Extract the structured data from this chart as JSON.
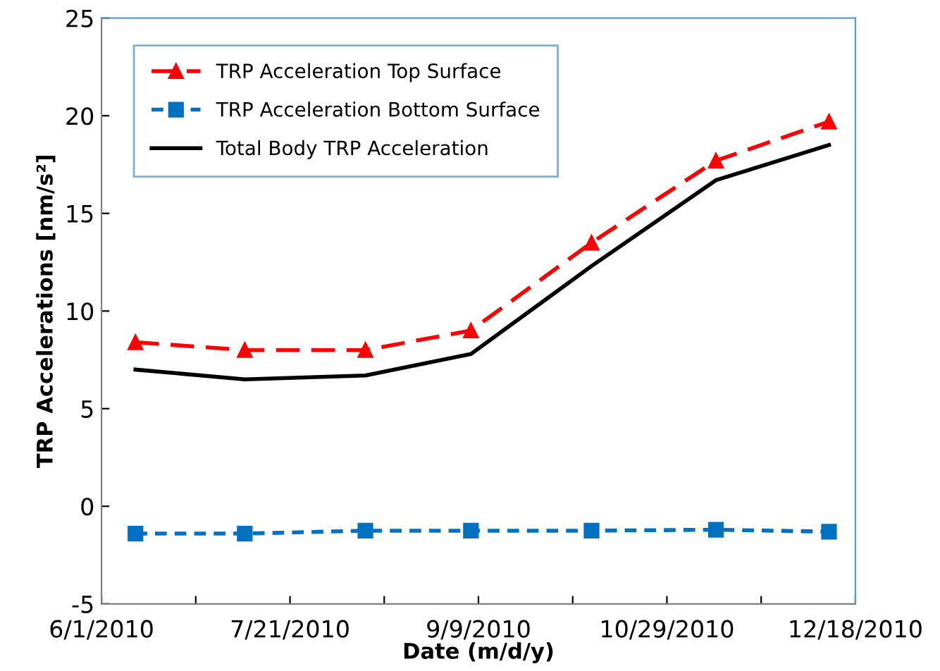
{
  "chart_data": {
    "type": "line",
    "xlabel": "Date (m/d/y)",
    "ylabel": "TRP Accelerations [nm/s²]",
    "x": [
      "2010-06-10",
      "2010-07-09",
      "2010-08-10",
      "2010-09-07",
      "2010-10-09",
      "2010-11-11",
      "2010-12-11"
    ],
    "series": [
      {
        "name": "TRP Acceleration Top Surface",
        "color": "#ff0000",
        "values": [
          8.4,
          8.0,
          8.0,
          9.0,
          13.5,
          17.7,
          19.7
        ],
        "marker": "triangle",
        "line_style": "dashed"
      },
      {
        "name": "TRP Acceleration Bottom Surface",
        "color": "#0070c0",
        "values": [
          -1.4,
          -1.4,
          -1.25,
          -1.25,
          -1.25,
          -1.2,
          -1.3
        ],
        "marker": "square",
        "line_style": "dotted"
      },
      {
        "name": "Total Body TRP Acceleration",
        "color": "#000000",
        "values": [
          7.0,
          6.5,
          6.7,
          7.8,
          12.3,
          16.7,
          18.5
        ],
        "marker": "none",
        "line_style": "solid"
      }
    ],
    "xlim": [
      "2010-06-01",
      "2010-12-18"
    ],
    "xticks": [
      {
        "value": "2010-06-01",
        "label": "6/1/2010"
      },
      {
        "value": "2010-06-26",
        "label": null
      },
      {
        "value": "2010-07-21",
        "label": "7/21/2010"
      },
      {
        "value": "2010-08-15",
        "label": null
      },
      {
        "value": "2010-09-09",
        "label": "9/9/2010"
      },
      {
        "value": "2010-10-04",
        "label": null
      },
      {
        "value": "2010-10-29",
        "label": "10/29/2010"
      },
      {
        "value": "2010-11-23",
        "label": null
      },
      {
        "value": "2010-12-18",
        "label": "12/18/2010"
      }
    ],
    "ylim": [
      -5,
      25
    ],
    "yticks": [
      -5,
      0,
      5,
      10,
      15,
      20,
      25
    ],
    "grid": false,
    "legend": "top left"
  }
}
